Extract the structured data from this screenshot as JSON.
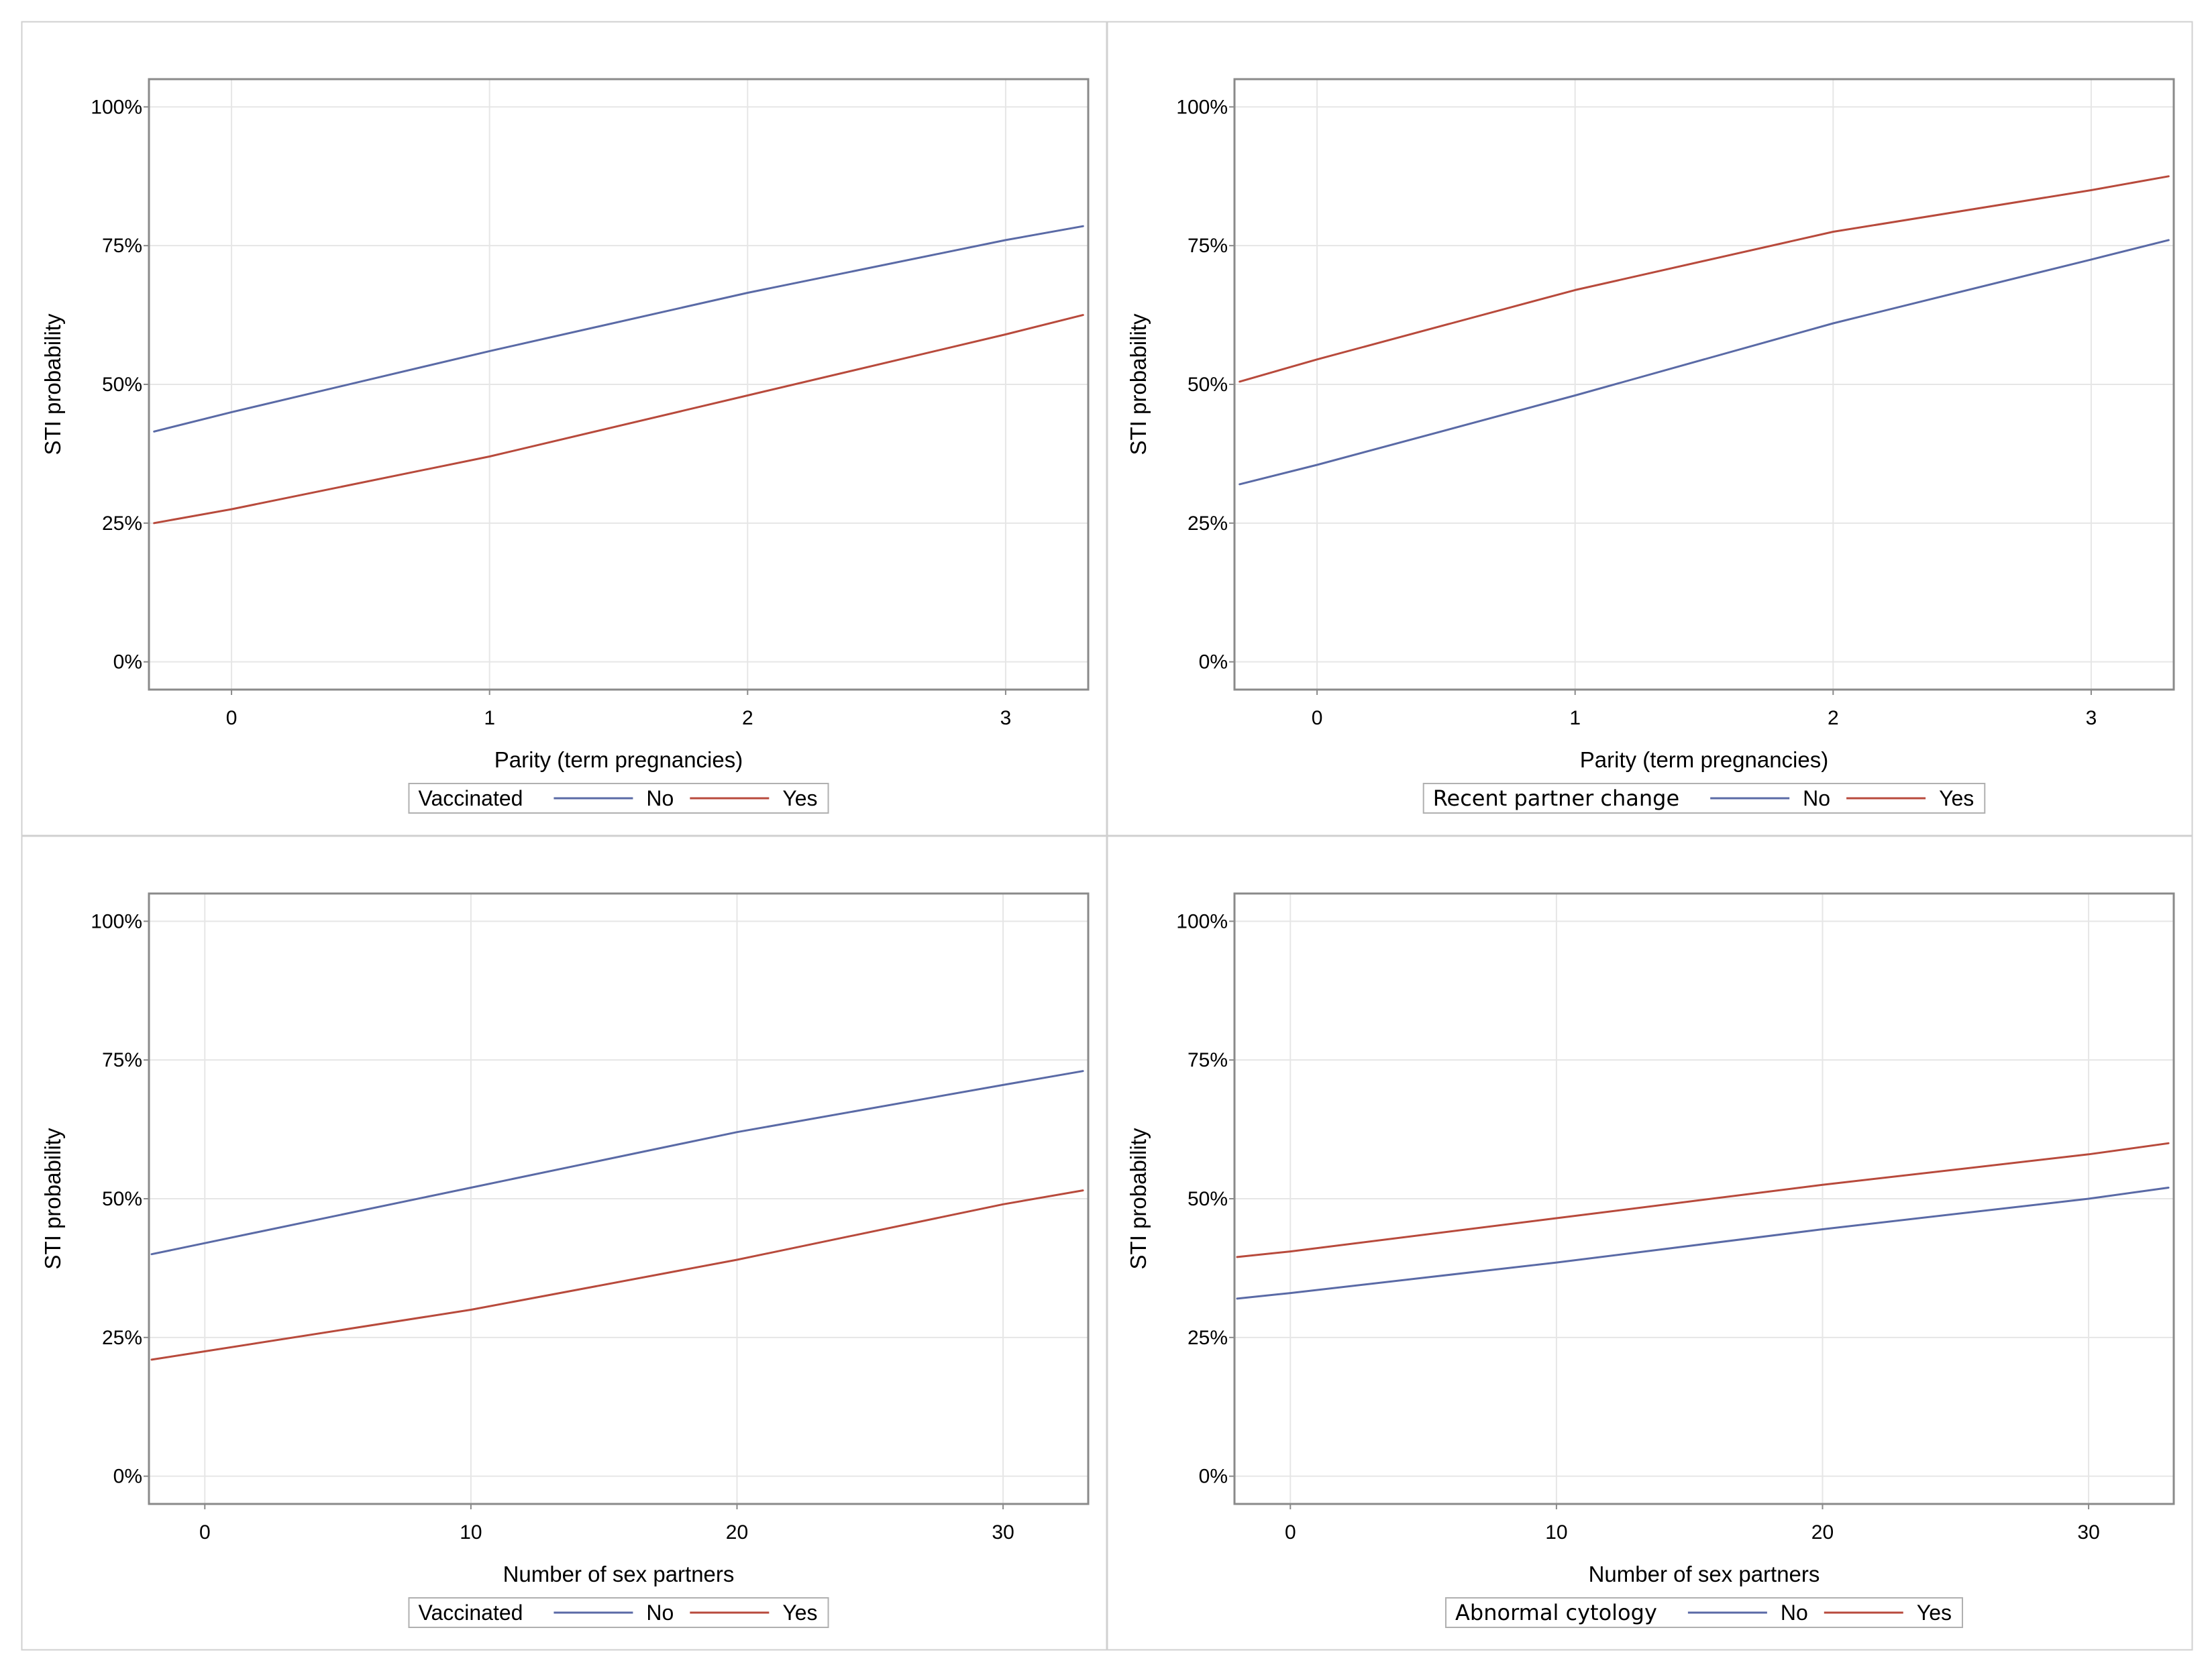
{
  "colors": {
    "no": "#5a6aa6",
    "yes": "#b84a3c",
    "grid": "#e6e6e6",
    "frame": "#8a8a8a",
    "panel_border": "#d0d0d0"
  },
  "chart_data": [
    {
      "type": "line",
      "xlabel": "Parity (term pregnancies)",
      "ylabel": "STI probability",
      "xlim": [
        -0.32,
        3.32
      ],
      "ylim": [
        -5,
        105
      ],
      "xticks": [
        0,
        1,
        2,
        3
      ],
      "xtick_labels": [
        "0",
        "1",
        "2",
        "3"
      ],
      "yticks": [
        0,
        25,
        50,
        75,
        100
      ],
      "ytick_labels": [
        "0%",
        "25%",
        "50%",
        "75%",
        "100%"
      ],
      "legend": {
        "title": "Vaccinated",
        "entries": [
          "No",
          "Yes"
        ],
        "placement": "bottom"
      },
      "series": [
        {
          "name": "No",
          "x": [
            -0.3,
            0,
            1,
            2,
            3,
            3.3
          ],
          "y": [
            41.5,
            45,
            56,
            66.5,
            76,
            78.5
          ]
        },
        {
          "name": "Yes",
          "x": [
            -0.3,
            0,
            1,
            2,
            3,
            3.3
          ],
          "y": [
            25,
            27.5,
            37,
            48,
            59,
            62.5
          ]
        }
      ]
    },
    {
      "type": "line",
      "xlabel": "Parity (term pregnancies)",
      "ylabel": "STI probability",
      "xlim": [
        -0.32,
        3.32
      ],
      "ylim": [
        -5,
        105
      ],
      "xticks": [
        0,
        1,
        2,
        3
      ],
      "xtick_labels": [
        "0",
        "1",
        "2",
        "3"
      ],
      "yticks": [
        0,
        25,
        50,
        75,
        100
      ],
      "ytick_labels": [
        "0%",
        "25%",
        "50%",
        "75%",
        "100%"
      ],
      "legend": {
        "title": "Recent partner change",
        "entries": [
          "No",
          "Yes"
        ],
        "placement": "bottom"
      },
      "series": [
        {
          "name": "No",
          "x": [
            -0.3,
            0,
            1,
            2,
            3,
            3.3
          ],
          "y": [
            32,
            35.5,
            48,
            61,
            72.5,
            76
          ]
        },
        {
          "name": "Yes",
          "x": [
            -0.3,
            0,
            1,
            2,
            3,
            3.3
          ],
          "y": [
            50.5,
            54.5,
            67,
            77.5,
            85,
            87.5
          ]
        }
      ]
    },
    {
      "type": "line",
      "xlabel": "Number of sex partners",
      "ylabel": "STI probability",
      "xlim": [
        -2.1,
        33.2
      ],
      "ylim": [
        -5,
        105
      ],
      "xticks": [
        0,
        10,
        20,
        30
      ],
      "xtick_labels": [
        "0",
        "10",
        "20",
        "30"
      ],
      "yticks": [
        0,
        25,
        50,
        75,
        100
      ],
      "ytick_labels": [
        "0%",
        "25%",
        "50%",
        "75%",
        "100%"
      ],
      "legend": {
        "title": "Vaccinated",
        "entries": [
          "No",
          "Yes"
        ],
        "placement": "bottom"
      },
      "series": [
        {
          "name": "No",
          "x": [
            -2,
            0,
            10,
            20,
            30,
            33
          ],
          "y": [
            40,
            42,
            52,
            62,
            70.5,
            73
          ]
        },
        {
          "name": "Yes",
          "x": [
            -2,
            0,
            10,
            20,
            30,
            33
          ],
          "y": [
            21,
            22.5,
            30,
            39,
            49,
            51.5
          ]
        }
      ]
    },
    {
      "type": "line",
      "xlabel": "Number of sex partners",
      "ylabel": "STI probability",
      "xlim": [
        -2.1,
        33.2
      ],
      "ylim": [
        -5,
        105
      ],
      "xticks": [
        0,
        10,
        20,
        30
      ],
      "xtick_labels": [
        "0",
        "10",
        "20",
        "30"
      ],
      "yticks": [
        0,
        25,
        50,
        75,
        100
      ],
      "ytick_labels": [
        "0%",
        "25%",
        "50%",
        "75%",
        "100%"
      ],
      "legend": {
        "title": "Abnormal cytology",
        "entries": [
          "No",
          "Yes"
        ],
        "placement": "bottom"
      },
      "series": [
        {
          "name": "No",
          "x": [
            -2,
            0,
            10,
            20,
            30,
            33
          ],
          "y": [
            32,
            33,
            38.5,
            44.5,
            50,
            52
          ]
        },
        {
          "name": "Yes",
          "x": [
            -2,
            0,
            10,
            20,
            30,
            33
          ],
          "y": [
            39.5,
            40.5,
            46.5,
            52.5,
            58,
            60
          ]
        }
      ]
    }
  ]
}
